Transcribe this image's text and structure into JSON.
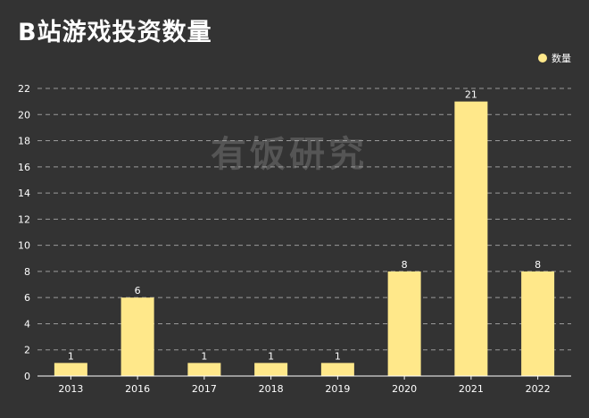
{
  "watermark": "有饭研究",
  "chart_data": {
    "type": "bar",
    "title": "B站游戏投资数量",
    "categories": [
      "2013",
      "2016",
      "2017",
      "2018",
      "2019",
      "2020",
      "2021",
      "2022"
    ],
    "series": [
      {
        "name": "数量",
        "values": [
          1,
          6,
          1,
          1,
          1,
          8,
          21,
          8
        ]
      }
    ],
    "xlabel": "",
    "ylabel": "",
    "ylim": [
      0,
      22
    ],
    "yticks": [
      0,
      2,
      4,
      6,
      8,
      10,
      12,
      14,
      16,
      18,
      20,
      22
    ],
    "grid": true,
    "legend_position": "top-right",
    "colors": {
      "bar": "#FFE88A",
      "background": "#333333",
      "grid": "#9a9a9a",
      "axis": "#ffffff"
    }
  }
}
